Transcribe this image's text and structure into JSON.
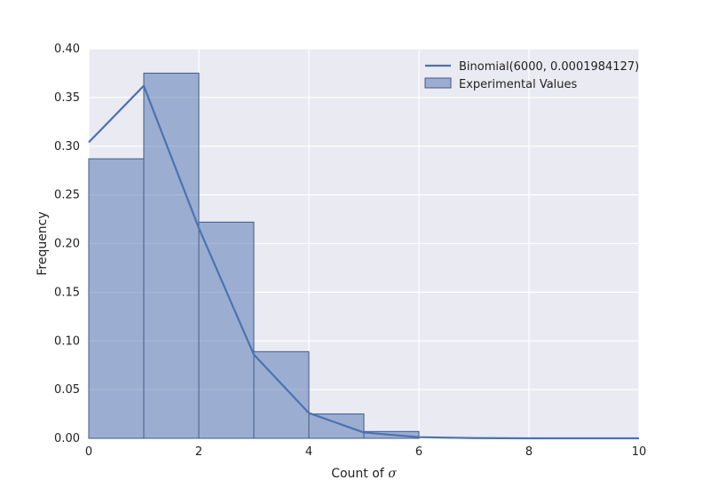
{
  "chart_data": {
    "type": "bar",
    "xlabel_main": "Count of ",
    "xlabel_symbol": "σ",
    "ylabel": "Frequency",
    "xlim": [
      0,
      10
    ],
    "ylim": [
      0,
      0.4
    ],
    "xticks": [
      0,
      2,
      4,
      6,
      8,
      10
    ],
    "yticks": [
      0.0,
      0.05,
      0.1,
      0.15,
      0.2,
      0.25,
      0.3,
      0.35,
      0.4
    ],
    "grid": true,
    "legend_position": "top-right",
    "histogram": {
      "name": "Experimental Values",
      "bin_edges": [
        0,
        1,
        2,
        3,
        4,
        5,
        6
      ],
      "values": [
        0.287,
        0.375,
        0.222,
        0.089,
        0.025,
        0.007
      ]
    },
    "line": {
      "name": "Binomial(6000, 0.0001984127)",
      "x": [
        0,
        1,
        2,
        3,
        4,
        5,
        6,
        7,
        8,
        9,
        10
      ],
      "y": [
        0.304,
        0.362,
        0.216,
        0.086,
        0.026,
        0.006,
        0.0012,
        0.0002,
        3e-05,
        0.0,
        0.0
      ]
    },
    "colors": {
      "background": "#EAEAF2",
      "grid": "#FFFFFF",
      "bar_fill": "#4C72B0",
      "bar_opacity": 0.5,
      "bar_edge": "#3E5A8A",
      "line": "#4C72B0"
    }
  }
}
